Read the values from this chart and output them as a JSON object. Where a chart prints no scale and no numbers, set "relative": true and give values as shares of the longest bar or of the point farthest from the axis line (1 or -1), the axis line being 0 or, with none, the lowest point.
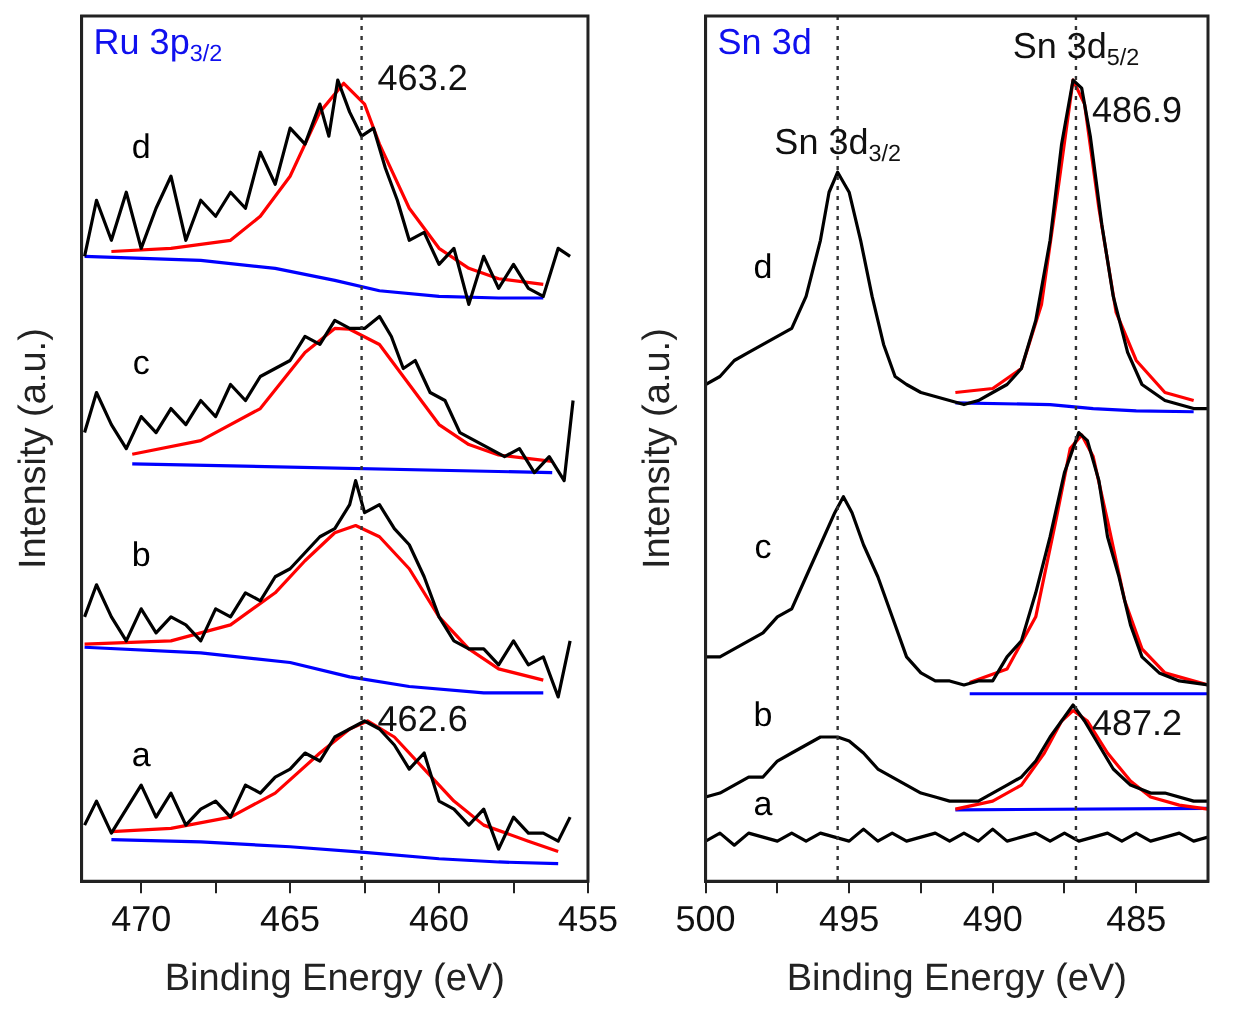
{
  "chart_data": [
    {
      "type": "line",
      "title": "Ru 3p$_{3/2}$",
      "xlabel": "Binding Energy (eV)",
      "ylabel": "Intensity (a.u.)",
      "relative": true,
      "xlim": [
        472,
        455
      ],
      "xticks": [
        470,
        {
          "value": 467.5,
          "label": null
        },
        465,
        {
          "value": 462.5,
          "label": null
        },
        460,
        {
          "value": 457.5,
          "label": null
        },
        455
      ],
      "grid": false,
      "legend": false,
      "marker": "none",
      "line_style": "solid",
      "ref_lines": [
        {
          "axis": "x",
          "value": 462.6,
          "line_style": "dotted",
          "color": "#333333"
        }
      ],
      "annotations": [
        {
          "text": "463.2",
          "x": 462.6,
          "y": 1.0
        },
        {
          "text": "462.6",
          "x": 462.6,
          "y": 0.2
        }
      ],
      "series": [
        {
          "name": "d",
          "color": "#000000",
          "x": [
            471.9,
            471.5,
            471.0,
            470.5,
            470.0,
            469.5,
            469.0,
            468.5,
            468.0,
            467.5,
            467.0,
            466.5,
            466.0,
            465.5,
            465.0,
            464.5,
            464.0,
            463.7,
            463.4,
            463.0,
            462.6,
            462.2,
            461.8,
            461.4,
            461.0,
            460.5,
            460.0,
            459.5,
            459.0,
            458.5,
            458.0,
            457.5,
            457.0,
            456.5,
            456.0,
            455.6
          ],
          "values": [
            0.78,
            0.85,
            0.8,
            0.86,
            0.79,
            0.84,
            0.88,
            0.8,
            0.85,
            0.83,
            0.86,
            0.84,
            0.91,
            0.87,
            0.94,
            0.92,
            0.97,
            0.93,
            1.0,
            0.96,
            0.93,
            0.94,
            0.89,
            0.85,
            0.8,
            0.81,
            0.77,
            0.79,
            0.72,
            0.78,
            0.74,
            0.77,
            0.74,
            0.73,
            0.79,
            0.78
          ]
        },
        {
          "color": "#ff0000",
          "x": [
            471,
            469,
            467,
            466,
            465,
            464,
            463.2,
            462.5,
            462,
            461,
            460,
            459,
            458,
            456.5
          ],
          "values": [
            0.786,
            0.79,
            0.8,
            0.83,
            0.88,
            0.96,
            0.996,
            0.97,
            0.92,
            0.84,
            0.79,
            0.765,
            0.752,
            0.745
          ]
        },
        {
          "color": "#0000ff",
          "x": [
            471.9,
            468,
            465.5,
            463.5,
            462,
            460,
            458,
            456.5
          ],
          "values": [
            0.78,
            0.775,
            0.765,
            0.75,
            0.737,
            0.73,
            0.728,
            0.728
          ]
        },
        {
          "name": "c",
          "color": "#000000",
          "x": [
            471.9,
            471.5,
            471,
            470.5,
            470,
            469.5,
            469,
            468.5,
            468,
            467.5,
            467,
            466.5,
            466,
            465.5,
            465,
            464.5,
            464,
            463.5,
            463,
            462.5,
            462,
            461.6,
            461.2,
            460.8,
            460.3,
            459.8,
            459.3,
            458.8,
            458.3,
            457.8,
            457.3,
            456.8,
            456.3,
            455.8,
            455.5
          ],
          "values": [
            0.56,
            0.61,
            0.57,
            0.54,
            0.58,
            0.56,
            0.59,
            0.57,
            0.6,
            0.58,
            0.62,
            0.6,
            0.63,
            0.64,
            0.65,
            0.68,
            0.67,
            0.7,
            0.69,
            0.69,
            0.705,
            0.68,
            0.64,
            0.65,
            0.61,
            0.6,
            0.56,
            0.55,
            0.54,
            0.53,
            0.54,
            0.51,
            0.53,
            0.5,
            0.6
          ]
        },
        {
          "color": "#ff0000",
          "x": [
            470.3,
            468,
            466,
            464.5,
            463.5,
            463,
            462,
            461,
            460,
            459,
            458,
            456.2
          ],
          "values": [
            0.533,
            0.55,
            0.59,
            0.66,
            0.69,
            0.689,
            0.67,
            0.62,
            0.57,
            0.545,
            0.532,
            0.524
          ]
        },
        {
          "color": "#0000ff",
          "x": [
            470.3,
            456.2
          ],
          "values": [
            0.521,
            0.51
          ]
        },
        {
          "name": "b",
          "color": "#000000",
          "x": [
            471.9,
            471.5,
            471,
            470.5,
            470,
            469.5,
            469,
            468.5,
            468,
            467.5,
            467,
            466.5,
            466,
            465.5,
            465,
            464.5,
            464,
            463.5,
            463,
            462.8,
            462.5,
            462,
            461.5,
            461,
            460.5,
            460,
            459.5,
            459,
            458.5,
            458,
            457.5,
            457,
            456.5,
            456,
            455.6
          ],
          "values": [
            0.33,
            0.37,
            0.33,
            0.3,
            0.34,
            0.31,
            0.33,
            0.32,
            0.3,
            0.34,
            0.33,
            0.36,
            0.35,
            0.38,
            0.39,
            0.41,
            0.43,
            0.44,
            0.47,
            0.5,
            0.46,
            0.47,
            0.44,
            0.42,
            0.38,
            0.33,
            0.3,
            0.29,
            0.29,
            0.27,
            0.3,
            0.27,
            0.28,
            0.23,
            0.3
          ]
        },
        {
          "color": "#ff0000",
          "x": [
            471.9,
            469,
            467,
            465.5,
            464.5,
            463.5,
            462.8,
            462,
            461,
            460,
            459,
            458,
            456.5
          ],
          "values": [
            0.296,
            0.3,
            0.32,
            0.36,
            0.4,
            0.435,
            0.444,
            0.43,
            0.39,
            0.33,
            0.29,
            0.265,
            0.251
          ]
        },
        {
          "color": "#0000ff",
          "x": [
            471.9,
            468,
            465,
            463,
            461,
            458.5,
            456.5
          ],
          "values": [
            0.292,
            0.285,
            0.273,
            0.255,
            0.243,
            0.235,
            0.235
          ]
        },
        {
          "name": "a",
          "color": "#000000",
          "x": [
            471.9,
            471.5,
            471,
            470.5,
            470,
            469.5,
            469,
            468.5,
            468,
            467.5,
            467,
            466.5,
            466,
            465.5,
            465,
            464.5,
            464,
            463.5,
            463,
            462.5,
            462,
            461.5,
            461,
            460.5,
            460,
            459.5,
            459,
            458.5,
            458,
            457.5,
            457,
            456.5,
            456,
            455.6
          ],
          "values": [
            0.07,
            0.1,
            0.06,
            0.09,
            0.12,
            0.08,
            0.11,
            0.07,
            0.09,
            0.1,
            0.08,
            0.12,
            0.11,
            0.13,
            0.14,
            0.16,
            0.15,
            0.18,
            0.19,
            0.2,
            0.19,
            0.17,
            0.14,
            0.16,
            0.1,
            0.09,
            0.07,
            0.09,
            0.04,
            0.08,
            0.06,
            0.06,
            0.05,
            0.08
          ]
        },
        {
          "color": "#ff0000",
          "x": [
            471,
            469,
            467,
            465.5,
            464,
            463,
            462.4,
            461.5,
            460.5,
            459.5,
            458.5,
            457,
            456
          ],
          "values": [
            0.062,
            0.066,
            0.08,
            0.11,
            0.16,
            0.19,
            0.2,
            0.18,
            0.14,
            0.1,
            0.07,
            0.05,
            0.037
          ]
        },
        {
          "color": "#0000ff",
          "x": [
            471,
            468,
            465,
            462.5,
            460,
            458,
            456
          ],
          "values": [
            0.052,
            0.049,
            0.043,
            0.036,
            0.028,
            0.024,
            0.022
          ]
        }
      ]
    },
    {
      "type": "line",
      "title": "Sn 3d",
      "xlabel": "Binding Energy (eV)",
      "ylabel": "Intensity (a.u.)",
      "relative": true,
      "xlim": [
        500,
        482.5
      ],
      "xticks": [
        500,
        {
          "value": 497.5,
          "label": null
        },
        495,
        {
          "value": 492.5,
          "label": null
        },
        490,
        {
          "value": 487.5,
          "label": null
        },
        485
      ],
      "grid": false,
      "legend": false,
      "marker": "none",
      "line_style": "solid",
      "ref_lines": [
        {
          "axis": "x",
          "value": 495.4,
          "line_style": "dotted",
          "color": "#333333"
        },
        {
          "axis": "x",
          "value": 487.1,
          "line_style": "dotted",
          "color": "#333333"
        }
      ],
      "annotations": [
        {
          "text": "Sn 3d$_{3/2}$",
          "x": 495.4,
          "y": 0.92
        },
        {
          "text": "Sn 3d$_{5/2}$",
          "x": 487.1,
          "y": 1.04
        },
        {
          "text": "486.9",
          "x": 487.1,
          "y": 0.96
        },
        {
          "text": "487.2",
          "x": 487.1,
          "y": 0.195
        }
      ],
      "series": [
        {
          "name": "d",
          "color": "#000000",
          "x": [
            500,
            499.5,
            499,
            498.5,
            498,
            497.5,
            497,
            496.5,
            496,
            495.7,
            495.4,
            495,
            494.6,
            494.2,
            493.8,
            493.4,
            493,
            492.5,
            492,
            491.5,
            491,
            490.5,
            490,
            489.5,
            489,
            488.5,
            488,
            487.6,
            487.2,
            486.9,
            486.6,
            486.2,
            485.8,
            485.3,
            484.8,
            484,
            483,
            482.5
          ],
          "values": [
            0.62,
            0.63,
            0.65,
            0.66,
            0.67,
            0.68,
            0.69,
            0.73,
            0.8,
            0.86,
            0.885,
            0.86,
            0.8,
            0.73,
            0.67,
            0.63,
            0.62,
            0.61,
            0.605,
            0.6,
            0.595,
            0.6,
            0.61,
            0.62,
            0.64,
            0.7,
            0.8,
            0.92,
            1.0,
            0.99,
            0.93,
            0.82,
            0.73,
            0.66,
            0.62,
            0.6,
            0.59,
            0.59
          ]
        },
        {
          "color": "#ff0000",
          "x": [
            491.3,
            490,
            489,
            488.3,
            487.7,
            487.2,
            486.8,
            486.3,
            485.7,
            485,
            484,
            483
          ],
          "values": [
            0.61,
            0.615,
            0.64,
            0.72,
            0.87,
            1.0,
            0.97,
            0.84,
            0.71,
            0.65,
            0.61,
            0.6
          ]
        },
        {
          "color": "#0000ff",
          "x": [
            491.3,
            488,
            486.5,
            485,
            483
          ],
          "values": [
            0.597,
            0.595,
            0.59,
            0.587,
            0.586
          ]
        },
        {
          "name": "c",
          "color": "#000000",
          "x": [
            500,
            499.5,
            499,
            498.5,
            498,
            497.5,
            497,
            496.5,
            496,
            495.5,
            495.2,
            494.9,
            494.5,
            494,
            493.5,
            493,
            492.5,
            492,
            491.5,
            491,
            490.5,
            490,
            489.5,
            489,
            488.5,
            488,
            487.5,
            487,
            486.7,
            486.3,
            486,
            485.6,
            485.2,
            484.8,
            484.2,
            483.5,
            482.5
          ],
          "values": [
            0.28,
            0.28,
            0.29,
            0.3,
            0.31,
            0.33,
            0.34,
            0.38,
            0.42,
            0.46,
            0.48,
            0.46,
            0.42,
            0.38,
            0.33,
            0.28,
            0.26,
            0.25,
            0.25,
            0.245,
            0.25,
            0.25,
            0.28,
            0.3,
            0.36,
            0.43,
            0.51,
            0.56,
            0.55,
            0.5,
            0.43,
            0.38,
            0.32,
            0.28,
            0.26,
            0.25,
            0.245
          ]
        },
        {
          "color": "#ff0000",
          "x": [
            490.8,
            489.5,
            488.5,
            487.8,
            487.3,
            486.9,
            486.5,
            486,
            485.4,
            484.8,
            484,
            482.5
          ],
          "values": [
            0.248,
            0.265,
            0.33,
            0.45,
            0.54,
            0.557,
            0.53,
            0.45,
            0.35,
            0.29,
            0.26,
            0.245
          ]
        },
        {
          "color": "#0000ff",
          "x": [
            490.8,
            482.5
          ],
          "values": [
            0.234,
            0.234
          ]
        },
        {
          "name": "b",
          "color": "#000000",
          "x": [
            500,
            499.5,
            499,
            498.5,
            498,
            497.5,
            497,
            496.5,
            496,
            495.4,
            495,
            494.5,
            494,
            493.5,
            493,
            492.5,
            492,
            491.5,
            491,
            490.5,
            490,
            489.5,
            489,
            488.5,
            488,
            487.5,
            487.2,
            486.8,
            486.3,
            485.8,
            485.2,
            484.5,
            484,
            483,
            482.5
          ],
          "values": [
            0.105,
            0.11,
            0.12,
            0.13,
            0.13,
            0.15,
            0.16,
            0.17,
            0.18,
            0.18,
            0.175,
            0.16,
            0.14,
            0.13,
            0.12,
            0.11,
            0.105,
            0.1,
            0.1,
            0.1,
            0.11,
            0.12,
            0.13,
            0.15,
            0.18,
            0.205,
            0.22,
            0.2,
            0.17,
            0.14,
            0.12,
            0.11,
            0.11,
            0.1,
            0.1
          ]
        },
        {
          "color": "#ff0000",
          "x": [
            491.3,
            490,
            489,
            488.2,
            487.6,
            487.2,
            486.7,
            486,
            485.2,
            484.5,
            483.5,
            482.5
          ],
          "values": [
            0.09,
            0.1,
            0.12,
            0.16,
            0.2,
            0.213,
            0.2,
            0.16,
            0.125,
            0.105,
            0.095,
            0.09
          ]
        },
        {
          "color": "#0000ff",
          "x": [
            491.3,
            482.5
          ],
          "values": [
            0.089,
            0.091
          ]
        },
        {
          "name": "a",
          "color": "#000000",
          "x": [
            500,
            499.5,
            499,
            498.5,
            498,
            497.5,
            497,
            496.5,
            496,
            495.5,
            495,
            494.5,
            494,
            493.5,
            493,
            492.5,
            492,
            491.5,
            491,
            490.5,
            490,
            489.5,
            489,
            488.5,
            488,
            487.5,
            487,
            486.5,
            486,
            485.5,
            485,
            484.5,
            484,
            483.5,
            483,
            482.5
          ],
          "values": [
            0.05,
            0.06,
            0.045,
            0.06,
            0.055,
            0.05,
            0.06,
            0.05,
            0.06,
            0.055,
            0.05,
            0.065,
            0.05,
            0.06,
            0.05,
            0.055,
            0.06,
            0.05,
            0.06,
            0.05,
            0.065,
            0.05,
            0.055,
            0.06,
            0.05,
            0.06,
            0.05,
            0.055,
            0.06,
            0.05,
            0.06,
            0.05,
            0.055,
            0.06,
            0.05,
            0.055
          ]
        }
      ]
    }
  ]
}
